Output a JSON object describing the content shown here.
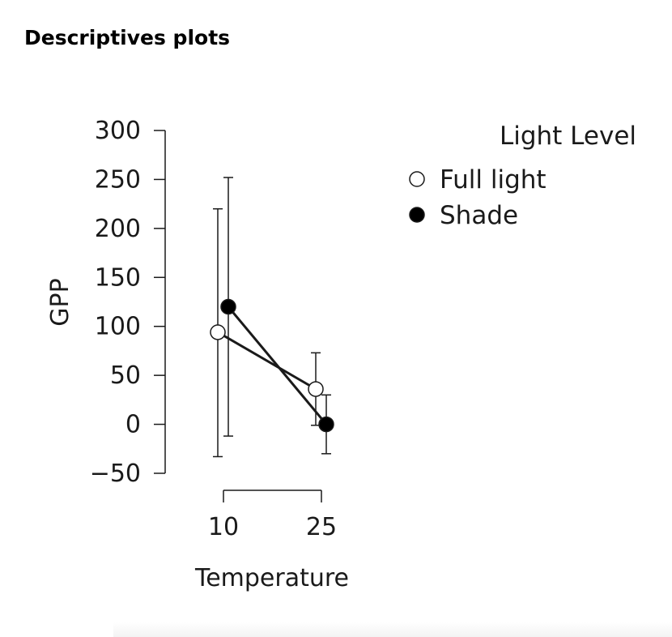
{
  "page": {
    "heading": "Descriptives plots"
  },
  "chart_data": {
    "type": "line",
    "title": "",
    "xlabel": "Temperature",
    "ylabel": "GPP",
    "categories": [
      "10",
      "25"
    ],
    "ylim": [
      -50,
      300
    ],
    "yticks": [
      -50,
      0,
      50,
      100,
      150,
      200,
      250,
      300
    ],
    "legend": {
      "title": "Light Level",
      "placement": "top-right"
    },
    "series": [
      {
        "name": "Full light",
        "marker": "open-circle",
        "color": "#ffffff",
        "values": [
          94,
          36
        ],
        "lower": [
          -33,
          -1
        ],
        "upper": [
          220,
          73
        ]
      },
      {
        "name": "Shade",
        "marker": "filled-circle",
        "color": "#000000",
        "values": [
          120,
          0
        ],
        "lower": [
          -12,
          -30
        ],
        "upper": [
          252,
          30
        ]
      }
    ],
    "grid": false
  }
}
